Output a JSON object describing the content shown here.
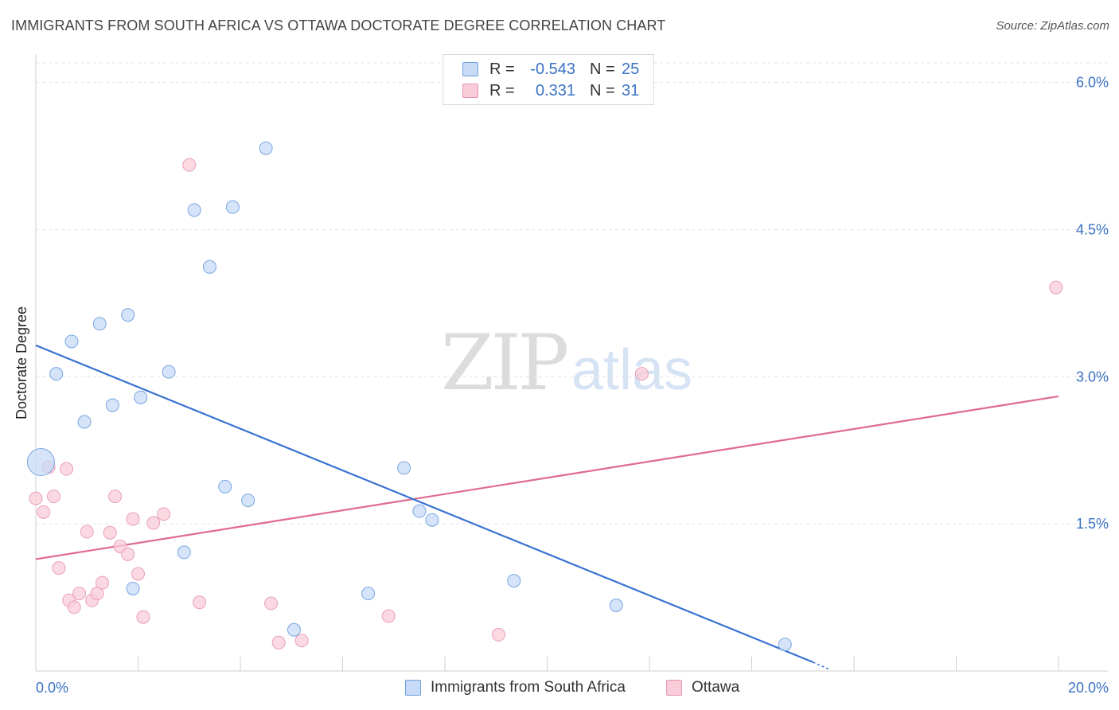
{
  "header": {
    "title": "IMMIGRANTS FROM SOUTH AFRICA VS OTTAWA DOCTORATE DEGREE CORRELATION CHART",
    "source": "Source: ZipAtlas.com"
  },
  "watermark": {
    "zip": "ZIP",
    "atlas": "atlas"
  },
  "legend": {
    "rows": [
      {
        "r_label": "R =",
        "r_value": "-0.543",
        "n_label": "N =",
        "n_value": "25"
      },
      {
        "r_label": "R =",
        "r_value": "0.331",
        "n_label": "N =",
        "n_value": "31"
      }
    ]
  },
  "chart_data": {
    "type": "scatter",
    "xlabel": "",
    "ylabel": "Doctorate Degree",
    "xlim": [
      0,
      20
    ],
    "ylim": [
      0,
      6.2
    ],
    "x_tick_labels": [
      "0.0%",
      "20.0%"
    ],
    "y_ticks": [
      1.5,
      3.0,
      4.5,
      6.0
    ],
    "y_tick_labels": [
      "1.5%",
      "3.0%",
      "4.5%",
      "6.0%"
    ],
    "grid": true,
    "colors": {
      "blue": "#3a72d4",
      "blue_fill": "#c7dbf6",
      "pink": "#e06a92",
      "pink_fill": "#f9ccd9"
    },
    "series": [
      {
        "name": "Immigrants from South Africa",
        "color": "blue",
        "points": [
          [
            0.1,
            2.13
          ],
          [
            0.4,
            3.03
          ],
          [
            0.7,
            3.36
          ],
          [
            0.95,
            2.54
          ],
          [
            1.25,
            3.54
          ],
          [
            1.5,
            2.71
          ],
          [
            1.8,
            3.63
          ],
          [
            2.05,
            2.79
          ],
          [
            2.6,
            3.05
          ],
          [
            3.1,
            4.7
          ],
          [
            3.4,
            4.12
          ],
          [
            3.85,
            4.73
          ],
          [
            4.5,
            5.33
          ],
          [
            1.9,
            0.84
          ],
          [
            2.9,
            1.21
          ],
          [
            3.7,
            1.88
          ],
          [
            4.15,
            1.74
          ],
          [
            5.05,
            0.42
          ],
          [
            6.5,
            0.79
          ],
          [
            7.2,
            2.07
          ],
          [
            7.5,
            1.63
          ],
          [
            7.75,
            1.54
          ],
          [
            9.35,
            0.92
          ],
          [
            11.35,
            0.67
          ],
          [
            14.65,
            0.27
          ]
        ],
        "trend": [
          [
            0,
            3.32
          ],
          [
            15.2,
            0.09
          ]
        ],
        "trend_ext": [
          [
            15.2,
            0.09
          ],
          [
            15.5,
            0.02
          ]
        ]
      },
      {
        "name": "Ottawa",
        "color": "pink",
        "points": [
          [
            0.0,
            1.76
          ],
          [
            0.15,
            1.62
          ],
          [
            0.25,
            2.08
          ],
          [
            0.35,
            1.78
          ],
          [
            0.45,
            1.05
          ],
          [
            0.6,
            2.06
          ],
          [
            0.65,
            0.72
          ],
          [
            0.75,
            0.65
          ],
          [
            0.85,
            0.79
          ],
          [
            1.0,
            1.42
          ],
          [
            1.1,
            0.72
          ],
          [
            1.2,
            0.79
          ],
          [
            1.3,
            0.9
          ],
          [
            1.45,
            1.41
          ],
          [
            1.55,
            1.78
          ],
          [
            1.65,
            1.27
          ],
          [
            1.8,
            1.19
          ],
          [
            1.9,
            1.55
          ],
          [
            2.0,
            0.99
          ],
          [
            2.1,
            0.55
          ],
          [
            2.3,
            1.51
          ],
          [
            2.5,
            1.6
          ],
          [
            3.0,
            5.16
          ],
          [
            3.2,
            0.7
          ],
          [
            4.6,
            0.69
          ],
          [
            4.75,
            0.29
          ],
          [
            5.2,
            0.31
          ],
          [
            6.9,
            0.56
          ],
          [
            9.05,
            0.37
          ],
          [
            11.85,
            3.03
          ],
          [
            19.95,
            3.91
          ]
        ],
        "trend": [
          [
            0,
            1.14
          ],
          [
            20,
            2.8
          ]
        ]
      }
    ]
  }
}
